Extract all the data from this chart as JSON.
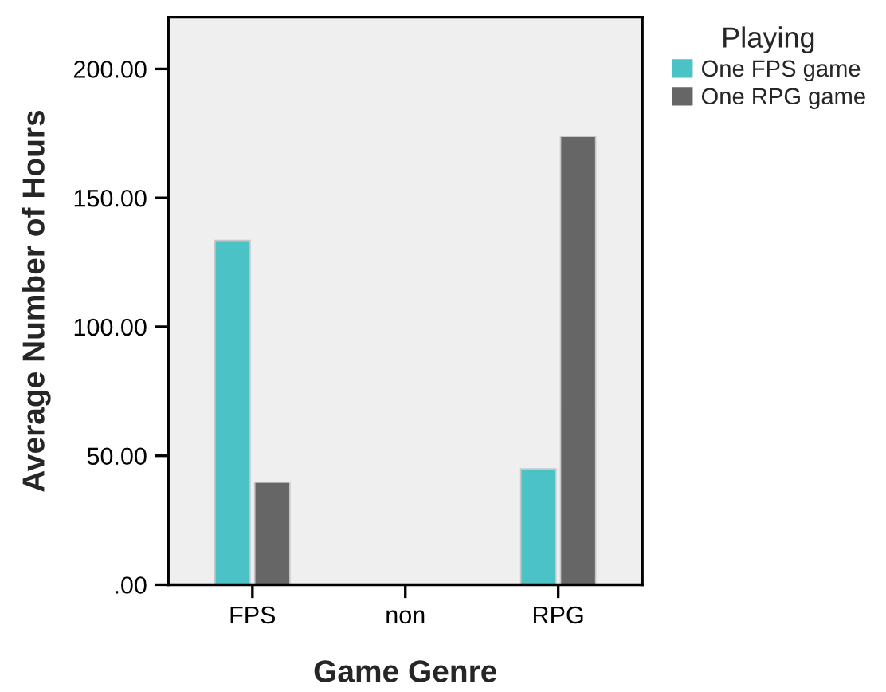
{
  "chart_data": {
    "type": "bar",
    "xlabel": "Game Genre",
    "ylabel": "Average Number of Hours",
    "legend_title": "Playing",
    "categories": [
      "FPS",
      "non",
      "RPG"
    ],
    "series": [
      {
        "name": "One FPS game",
        "color": "#4bc3c6",
        "values": [
          133.5,
          null,
          44.9
        ]
      },
      {
        "name": "One RPG game",
        "color": "#666666",
        "values": [
          39.7,
          null,
          173.8
        ]
      }
    ],
    "ylim": [
      0,
      220
    ],
    "yticks": [
      {
        "value": 0,
        "label": ".00"
      },
      {
        "value": 50,
        "label": "50.00"
      },
      {
        "value": 100,
        "label": "100.00"
      },
      {
        "value": 150,
        "label": "150.00"
      },
      {
        "value": 200,
        "label": "200.00"
      }
    ],
    "grid": false,
    "legend": "right"
  }
}
